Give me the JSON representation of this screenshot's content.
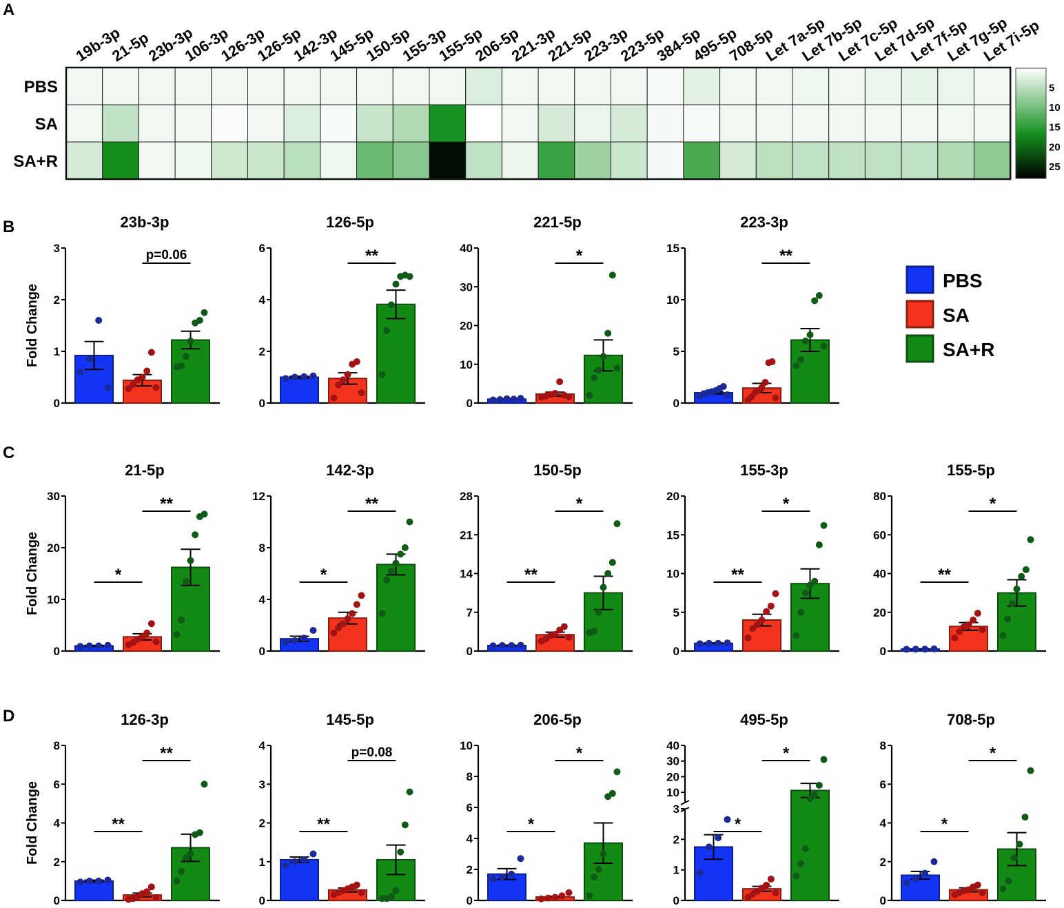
{
  "panel_letters": [
    "A",
    "B",
    "C",
    "D"
  ],
  "colors": {
    "PBS": "#1334f5",
    "SA": "#f2331d",
    "SA+R": "#128a14",
    "PBS_dot": "#1a2a99",
    "SA_dot": "#a41313",
    "SA+R_dot": "#0f5a16",
    "heat_low": "#ffffff",
    "heat_mid": "#14901e",
    "heat_high": "#000000"
  },
  "legend": {
    "items": [
      "PBS",
      "SA",
      "SA+R"
    ]
  },
  "chart_data": [
    {
      "id": "A",
      "type": "heatmap",
      "title": "",
      "columns": [
        "19b-3p",
        "21-5p",
        "23b-3p",
        "106-3p",
        "126-3p",
        "126-5p",
        "142-3p",
        "145-5p",
        "150-5p",
        "155-3p",
        "155-5p",
        "206-5p",
        "221-3p",
        "221-5p",
        "223-3p",
        "223-5p",
        "384-5p",
        "495-5p",
        "708-5p",
        "Let 7a-5p",
        "Let 7b-5p",
        "Let 7c-5p",
        "Let 7d-5p",
        "Let 7f-5p",
        "Let 7g-5p",
        "Let 7i-5p"
      ],
      "rows": [
        "PBS",
        "SA",
        "SA+R"
      ],
      "values": [
        [
          1,
          1,
          1,
          1,
          1,
          1,
          1,
          1,
          1,
          1,
          1,
          2.5,
          1,
          1,
          1,
          1,
          0.6,
          2,
          1,
          1,
          1.2,
          1,
          1.3,
          1.8,
          1.5,
          1
        ],
        [
          1,
          4.5,
          1,
          1,
          0.4,
          1,
          2.5,
          0.5,
          4,
          5.5,
          16.5,
          0,
          1,
          3,
          1.5,
          3,
          0.7,
          0.6,
          1,
          1,
          1,
          1,
          1,
          1,
          1,
          1
        ],
        [
          3,
          17,
          1,
          1.2,
          3.5,
          3.7,
          5,
          1.2,
          10.5,
          8.5,
          27,
          4.5,
          1.3,
          14,
          7,
          3.8,
          0.7,
          13,
          3,
          4.8,
          4.5,
          4.5,
          4.5,
          4.5,
          5.5,
          8
        ]
      ],
      "colorbar": {
        "ticks": [
          5,
          10,
          15,
          20,
          25
        ],
        "range": [
          0,
          28
        ]
      }
    },
    {
      "id": "B1",
      "type": "bar",
      "title": "23b-3p",
      "ylabel": "Fold Change",
      "yticks": [
        "0",
        "1",
        "2",
        "3"
      ],
      "ylim": [
        0,
        3
      ],
      "categories": [
        "PBS",
        "SA",
        "SA+R"
      ],
      "values": [
        0.92,
        0.44,
        1.22
      ],
      "sem": [
        0.27,
        0.11,
        0.17
      ],
      "points": [
        [
          0.6,
          0.85,
          1.6,
          0.3
        ],
        [
          0.28,
          0.36,
          0.45,
          0.5,
          0.62,
          0.98,
          0.3
        ],
        [
          0.7,
          0.72,
          0.9,
          1.2,
          1.55,
          1.6,
          1.75
        ]
      ],
      "sig": [
        {
          "from": 1,
          "to": 2,
          "label": "p=0.06"
        }
      ]
    },
    {
      "id": "B2",
      "type": "bar",
      "title": "126-5p",
      "ylabel": "",
      "yticks": [
        "0",
        "2",
        "4",
        "6"
      ],
      "ylim": [
        0,
        6
      ],
      "categories": [
        "PBS",
        "SA",
        "SA+R"
      ],
      "values": [
        1.0,
        0.95,
        3.82
      ],
      "sem": [
        0.04,
        0.22,
        0.55
      ],
      "points": [
        [
          0.95,
          1.0,
          1.02,
          1.05
        ],
        [
          0.2,
          0.7,
          0.9,
          1.1,
          1.5,
          1.6,
          0.4
        ],
        [
          1.1,
          2.8,
          3.8,
          4.6,
          4.9,
          4.95,
          4.9
        ]
      ],
      "sig": [
        {
          "from": 1,
          "to": 2,
          "label": "**"
        }
      ]
    },
    {
      "id": "B3",
      "type": "bar",
      "title": "221-5p",
      "ylabel": "",
      "yticks": [
        "0",
        "10",
        "20",
        "30",
        "40"
      ],
      "ylim": [
        0,
        40
      ],
      "categories": [
        "PBS",
        "SA",
        "SA+R"
      ],
      "values": [
        1.0,
        2.3,
        12.3
      ],
      "sem": [
        0.1,
        0.5,
        4.0
      ],
      "points": [
        [
          0.8,
          0.9,
          1.1,
          1.0,
          1.2
        ],
        [
          1.5,
          1.8,
          2.2,
          2.5,
          5.5,
          2.0,
          1.6
        ],
        [
          2.0,
          6.5,
          8.5,
          12,
          18,
          33,
          9
        ]
      ],
      "sig": [
        {
          "from": 1,
          "to": 2,
          "label": "*"
        }
      ]
    },
    {
      "id": "B4",
      "type": "bar",
      "title": "223-3p",
      "ylabel": "",
      "yticks": [
        "0",
        "5",
        "10",
        "15"
      ],
      "ylim": [
        0,
        15
      ],
      "categories": [
        "PBS",
        "SA",
        "SA+R"
      ],
      "values": [
        1.0,
        1.45,
        6.1
      ],
      "sem": [
        0.12,
        0.45,
        1.1
      ],
      "points": [
        [
          0.7,
          0.9,
          1.0,
          1.1,
          1.2,
          1.4,
          1.6,
          0.8
        ],
        [
          0.3,
          0.6,
          1.0,
          1.2,
          1.5,
          2.0,
          3.9,
          4.0,
          0.5
        ],
        [
          3.6,
          4.2,
          6.0,
          6.6,
          9.9,
          10.4,
          5.5
        ]
      ],
      "sig": [
        {
          "from": 1,
          "to": 2,
          "label": "**"
        }
      ]
    },
    {
      "id": "C1",
      "type": "bar",
      "title": "21-5p",
      "ylabel": "Fold Change",
      "yticks": [
        "0",
        "10",
        "20",
        "30"
      ],
      "ylim": [
        0,
        30
      ],
      "categories": [
        "PBS",
        "SA",
        "SA+R"
      ],
      "values": [
        1.0,
        2.75,
        16.2
      ],
      "sem": [
        0.1,
        0.6,
        3.5
      ],
      "points": [
        [
          0.9,
          1.0,
          1.0,
          1.1
        ],
        [
          1.2,
          1.6,
          2.3,
          2.8,
          3.5,
          5.3,
          1.8
        ],
        [
          3.2,
          6.0,
          13.5,
          17.5,
          22.5,
          26,
          26.5
        ]
      ],
      "sig": [
        {
          "from": 0,
          "to": 1,
          "label": "*"
        },
        {
          "from": 1,
          "to": 2,
          "label": "**"
        }
      ]
    },
    {
      "id": "C2",
      "type": "bar",
      "title": "142-3p",
      "ylabel": "",
      "yticks": [
        "0",
        "4",
        "8",
        "12"
      ],
      "ylim": [
        0,
        12
      ],
      "categories": [
        "PBS",
        "SA",
        "SA+R"
      ],
      "values": [
        0.95,
        2.55,
        6.7
      ],
      "sem": [
        0.2,
        0.45,
        0.8
      ],
      "points": [
        [
          0.7,
          0.8,
          1.0,
          1.6
        ],
        [
          1.4,
          1.8,
          2.1,
          2.5,
          2.9,
          3.6,
          4.3
        ],
        [
          2.9,
          5.5,
          6.2,
          6.8,
          7.5,
          8.0,
          10.0
        ]
      ],
      "sig": [
        {
          "from": 0,
          "to": 1,
          "label": "*"
        },
        {
          "from": 1,
          "to": 2,
          "label": "**"
        }
      ]
    },
    {
      "id": "C3",
      "type": "bar",
      "title": "150-5p",
      "ylabel": "",
      "yticks": [
        "0",
        "7",
        "14",
        "21",
        "28"
      ],
      "ylim": [
        0,
        28
      ],
      "categories": [
        "PBS",
        "SA",
        "SA+R"
      ],
      "values": [
        1.0,
        2.95,
        10.5
      ],
      "sem": [
        0.06,
        0.45,
        3.0
      ],
      "points": [
        [
          0.95,
          1.0,
          1.0,
          1.05
        ],
        [
          1.8,
          2.2,
          2.8,
          3.0,
          3.8,
          4.4,
          2.5
        ],
        [
          3.3,
          3.6,
          7.0,
          11.5,
          14.0,
          16.0,
          23.0
        ]
      ],
      "sig": [
        {
          "from": 0,
          "to": 1,
          "label": "**"
        },
        {
          "from": 1,
          "to": 2,
          "label": "*"
        }
      ]
    },
    {
      "id": "C4",
      "type": "bar",
      "title": "155-3p",
      "ylabel": "",
      "yticks": [
        "0",
        "5",
        "10",
        "15",
        "20"
      ],
      "ylim": [
        0,
        20
      ],
      "categories": [
        "PBS",
        "SA",
        "SA+R"
      ],
      "values": [
        1.0,
        4.0,
        8.7
      ],
      "sem": [
        0.06,
        0.75,
        1.9
      ],
      "points": [
        [
          0.95,
          1.0,
          1.0,
          1.05
        ],
        [
          1.7,
          2.9,
          3.4,
          4.0,
          5.1,
          5.8,
          7.4
        ],
        [
          2.0,
          5.0,
          7.5,
          8.5,
          9.0,
          13.7,
          16.2
        ]
      ],
      "sig": [
        {
          "from": 0,
          "to": 1,
          "label": "**"
        },
        {
          "from": 1,
          "to": 2,
          "label": "*"
        }
      ]
    },
    {
      "id": "C5",
      "type": "bar",
      "title": "155-5p",
      "ylabel": "",
      "yticks": [
        "0",
        "20",
        "40",
        "60",
        "80"
      ],
      "ylim": [
        0,
        80
      ],
      "categories": [
        "PBS",
        "SA",
        "SA+R"
      ],
      "values": [
        1.0,
        12.7,
        30.0
      ],
      "sem": [
        0.1,
        2.0,
        6.8
      ],
      "points": [
        [
          0.9,
          1.0,
          1.0,
          1.1
        ],
        [
          6.8,
          10.0,
          12.5,
          13.5,
          16.0,
          19.5,
          11.0
        ],
        [
          8.0,
          16.5,
          24.5,
          32.0,
          38.5,
          42.0,
          57.5
        ]
      ],
      "sig": [
        {
          "from": 0,
          "to": 1,
          "label": "**"
        },
        {
          "from": 1,
          "to": 2,
          "label": "*"
        }
      ]
    },
    {
      "id": "D1",
      "type": "bar",
      "title": "126-3p",
      "ylabel": "Fold Change",
      "yticks": [
        "0",
        "2",
        "4",
        "6",
        "8"
      ],
      "ylim": [
        0,
        8
      ],
      "categories": [
        "PBS",
        "SA",
        "SA+R"
      ],
      "values": [
        1.0,
        0.28,
        2.72
      ],
      "sem": [
        0.05,
        0.1,
        0.7
      ],
      "points": [
        [
          0.95,
          1.0,
          1.0,
          1.05
        ],
        [
          0.05,
          0.1,
          0.2,
          0.35,
          0.45,
          0.7,
          0.15
        ],
        [
          1.0,
          1.5,
          2.2,
          2.4,
          3.4,
          3.5,
          6.0
        ]
      ],
      "sig": [
        {
          "from": 0,
          "to": 1,
          "label": "**"
        },
        {
          "from": 1,
          "to": 2,
          "label": "**"
        }
      ]
    },
    {
      "id": "D2",
      "type": "bar",
      "title": "145-5p",
      "ylabel": "",
      "yticks": [
        "0",
        "1",
        "2",
        "3",
        "4"
      ],
      "ylim": [
        0,
        4
      ],
      "categories": [
        "PBS",
        "SA",
        "SA+R"
      ],
      "values": [
        1.05,
        0.27,
        1.05
      ],
      "sem": [
        0.07,
        0.05,
        0.38
      ],
      "points": [
        [
          0.9,
          1.0,
          1.05,
          1.2
        ],
        [
          0.15,
          0.2,
          0.25,
          0.3,
          0.35,
          0.4,
          0.2
        ],
        [
          0.05,
          0.05,
          0.1,
          0.25,
          1.25,
          1.95,
          2.8
        ]
      ],
      "sig": [
        {
          "from": 0,
          "to": 1,
          "label": "**"
        },
        {
          "from": 1,
          "to": 2,
          "label": "p=0.08"
        }
      ]
    },
    {
      "id": "D3",
      "type": "bar",
      "title": "206-5p",
      "ylabel": "",
      "yticks": [
        "0",
        "2",
        "4",
        "6",
        "8",
        "10"
      ],
      "ylim": [
        0,
        10
      ],
      "categories": [
        "PBS",
        "SA",
        "SA+R"
      ],
      "values": [
        1.7,
        0.22,
        3.7
      ],
      "sem": [
        0.35,
        0.05,
        1.3
      ],
      "points": [
        [
          1.4,
          1.5,
          1.7,
          2.7
        ],
        [
          0.1,
          0.15,
          0.2,
          0.3,
          0.5
        ],
        [
          0.3,
          1.5,
          2.0,
          3.0,
          6.7,
          6.9,
          8.3
        ]
      ],
      "sig": [
        {
          "from": 0,
          "to": 1,
          "label": "*"
        },
        {
          "from": 1,
          "to": 2,
          "label": "*"
        }
      ]
    },
    {
      "id": "D4",
      "type": "bar",
      "title": "495-5p",
      "ylabel": "",
      "yticks": [
        "0",
        "1",
        "2",
        "3",
        "10",
        "20",
        "30",
        "40"
      ],
      "ylim_lower": [
        0,
        3
      ],
      "ylim_upper": [
        3,
        40
      ],
      "axis_break": true,
      "categories": [
        "PBS",
        "SA",
        "SA+R"
      ],
      "values": [
        1.75,
        0.38,
        11.2
      ],
      "sem": [
        0.4,
        0.08,
        4.5
      ],
      "points": [
        [
          0.9,
          1.75,
          2.05,
          2.65
        ],
        [
          0.1,
          0.2,
          0.3,
          0.4,
          0.5,
          0.7,
          0.25
        ],
        [
          0.8,
          1.2,
          1.7,
          6.0,
          8.5,
          14.5,
          31
        ]
      ],
      "sig": [
        {
          "from": 0,
          "to": 1,
          "label": "*"
        },
        {
          "from": 1,
          "to": 2,
          "label": "*"
        }
      ]
    },
    {
      "id": "D5",
      "type": "bar",
      "title": "708-5p",
      "ylabel": "",
      "yticks": [
        "0",
        "2",
        "4",
        "6",
        "8"
      ],
      "ylim": [
        0,
        8
      ],
      "categories": [
        "PBS",
        "SA",
        "SA+R"
      ],
      "values": [
        1.3,
        0.55,
        2.65
      ],
      "sem": [
        0.2,
        0.1,
        0.85
      ],
      "points": [
        [
          0.9,
          1.1,
          1.4,
          2.0
        ],
        [
          0.3,
          0.4,
          0.5,
          0.55,
          0.7,
          0.8,
          0.4
        ],
        [
          0.6,
          1.0,
          2.2,
          2.9,
          4.3,
          6.7
        ]
      ],
      "sig": [
        {
          "from": 0,
          "to": 1,
          "label": "*"
        },
        {
          "from": 1,
          "to": 2,
          "label": "*"
        }
      ]
    }
  ]
}
